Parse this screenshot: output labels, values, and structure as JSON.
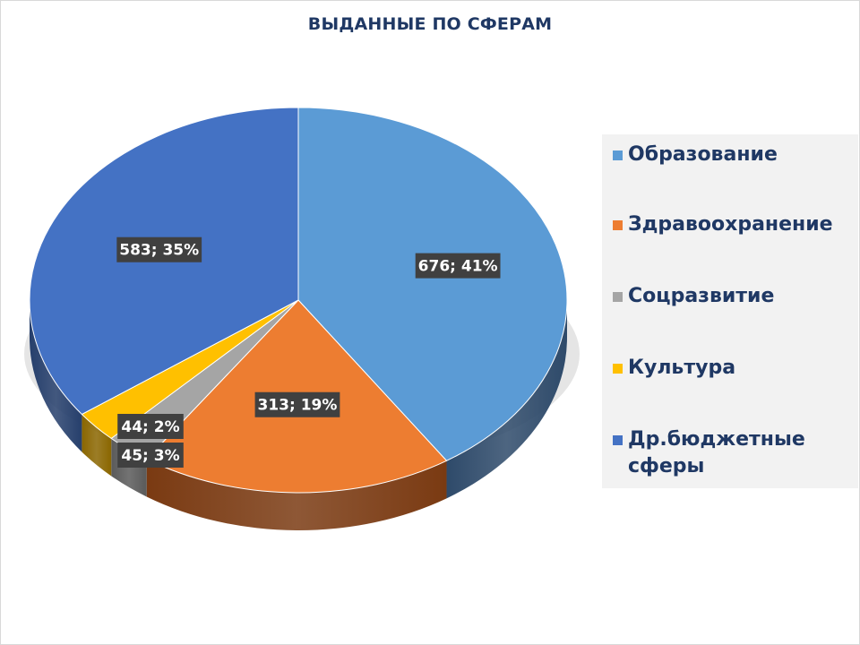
{
  "chart_data": {
    "type": "pie",
    "title": "ВЫДАННЫЕ ПО СФЕРАМ",
    "legend_position": "right",
    "slices": [
      {
        "name": "Образование",
        "value": 676,
        "label": "676; 41%",
        "color": "#5b9bd5",
        "side": "#2e4a6a"
      },
      {
        "name": "Здравоохранение",
        "value": 313,
        "label": "313; 19%",
        "color": "#ed7d31",
        "side": "#7a3a12"
      },
      {
        "name": "Соцразвитие",
        "value": 45,
        "label": "45; 3%",
        "color": "#a5a5a5",
        "side": "#5a5a5a"
      },
      {
        "name": "Культура",
        "value": 44,
        "label": "44; 2%",
        "color": "#ffc000",
        "side": "#8a6600"
      },
      {
        "name": "Др.бюджетные сферы",
        "value": 583,
        "label": "583; 35%",
        "color": "#4472c4",
        "side": "#263f6c"
      }
    ]
  }
}
